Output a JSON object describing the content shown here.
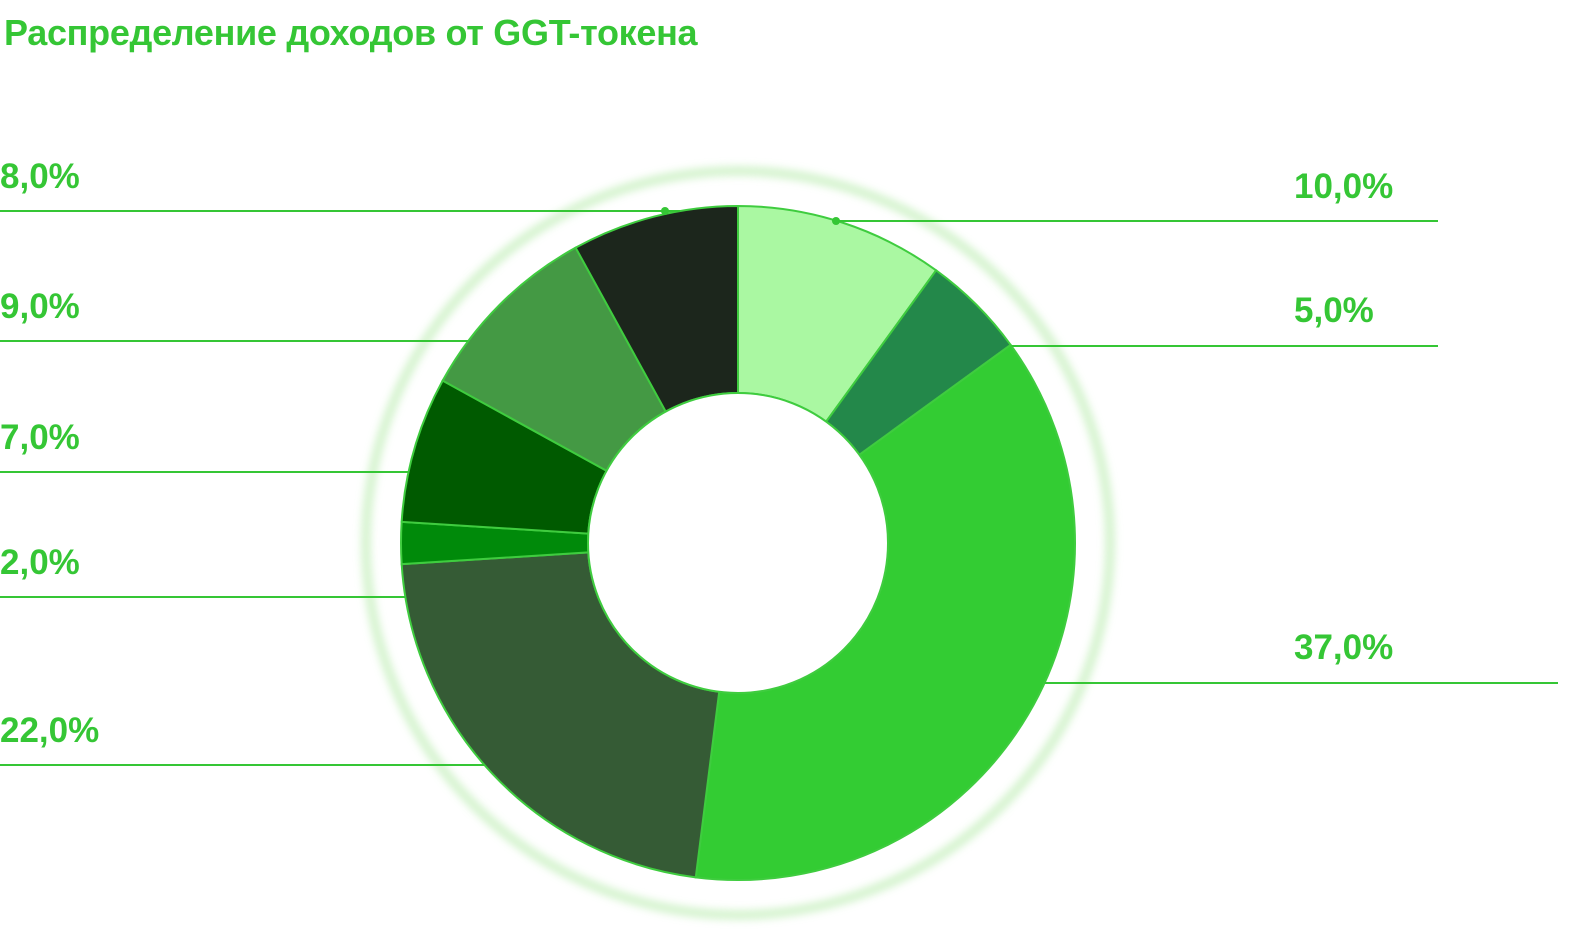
{
  "chart_data": {
    "type": "donut",
    "title": "Распределение доходов от GGT-токена",
    "slices": [
      {
        "value": 10.0,
        "label": "10,0%",
        "color": "#aaf8a2",
        "side": "right"
      },
      {
        "value": 5.0,
        "label": "5,0%",
        "color": "#23884a",
        "side": "right"
      },
      {
        "value": 37.0,
        "label": "37,0%",
        "color": "#33cc33",
        "side": "right"
      },
      {
        "value": 22.0,
        "label": "22,0%",
        "color": "#355b35",
        "side": "left"
      },
      {
        "value": 2.0,
        "label": "2,0%",
        "color": "#008a0a",
        "side": "left"
      },
      {
        "value": 7.0,
        "label": "7,0%",
        "color": "#005a00",
        "side": "left"
      },
      {
        "value": 9.0,
        "label": "9,0%",
        "color": "#449944",
        "side": "left"
      },
      {
        "value": 8.0,
        "label": "8,0%",
        "color": "#1c261c",
        "side": "left"
      }
    ],
    "start_angle": "top",
    "direction": "clockwise",
    "legend": "none",
    "label_color": "#35c635",
    "leader_line_color": "#35c635",
    "halo_color": "#c8f0c0"
  }
}
